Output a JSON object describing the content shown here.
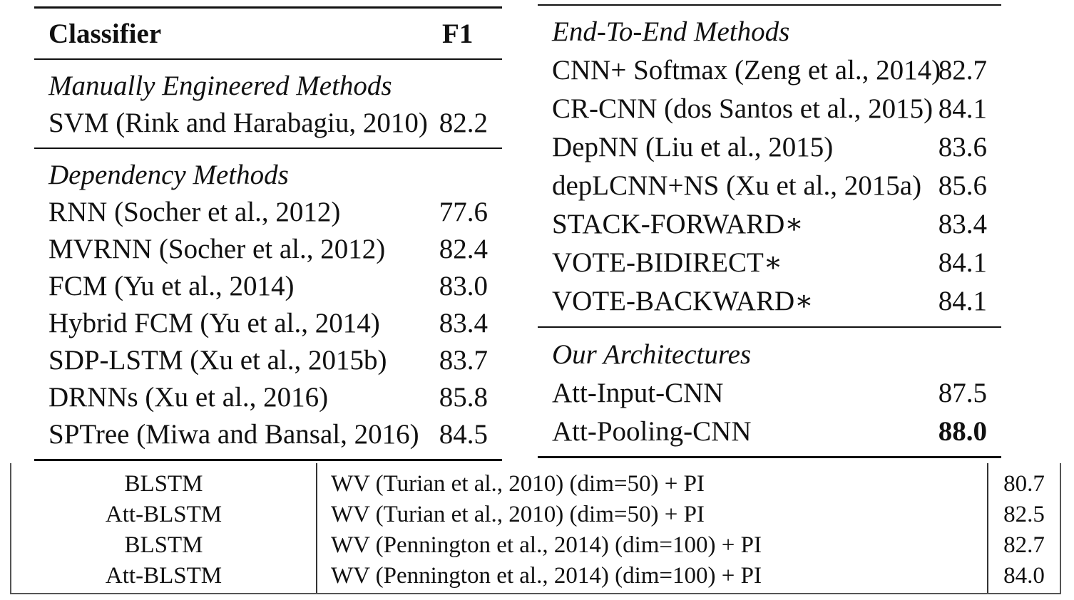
{
  "left_table": {
    "header": {
      "col1": "Classifier",
      "col2": "F1"
    },
    "sections": [
      {
        "title": "Manually Engineered Methods",
        "rows": [
          {
            "name": "SVM (Rink and Harabagiu, 2010)",
            "f1": "82.2"
          }
        ]
      },
      {
        "title": "Dependency Methods",
        "rows": [
          {
            "name": "RNN (Socher et al., 2012)",
            "f1": "77.6"
          },
          {
            "name": "MVRNN (Socher et al., 2012)",
            "f1": "82.4"
          },
          {
            "name": "FCM (Yu et al., 2014)",
            "f1": "83.0"
          },
          {
            "name": "Hybrid FCM (Yu et al., 2014)",
            "f1": "83.4"
          },
          {
            "name": "SDP-LSTM (Xu et al., 2015b)",
            "f1": "83.7"
          },
          {
            "name": "DRNNs (Xu et al., 2016)",
            "f1": "85.8"
          },
          {
            "name": "SPTree (Miwa and Bansal, 2016)",
            "f1": "84.5"
          }
        ]
      }
    ]
  },
  "right_table": {
    "sections": [
      {
        "title": "End-To-End Methods",
        "rows": [
          {
            "name": "CNN+ Softmax (Zeng et al., 2014)",
            "f1": "82.7"
          },
          {
            "name": "CR-CNN (dos Santos et al., 2015)",
            "f1": "84.1"
          },
          {
            "name": "DepNN (Liu et al., 2015)",
            "f1": "83.6"
          },
          {
            "name": "depLCNN+NS (Xu et al., 2015a)",
            "f1": "85.6"
          },
          {
            "name": "STACK-FORWARD∗",
            "f1": "83.4"
          },
          {
            "name": "VOTE-BIDIRECT∗",
            "f1": "84.1"
          },
          {
            "name": "VOTE-BACKWARD∗",
            "f1": "84.1"
          }
        ]
      },
      {
        "title": "Our Architectures",
        "rows": [
          {
            "name": "Att-Input-CNN",
            "f1": "87.5"
          },
          {
            "name": "Att-Pooling-CNN",
            "f1": "88.0"
          }
        ]
      }
    ]
  },
  "bottom_table": {
    "rows": [
      {
        "model": "BLSTM",
        "features": "WV (Turian et al., 2010) (dim=50) + PI",
        "f1": "80.7"
      },
      {
        "model": "Att-BLSTM",
        "features": "WV (Turian et al., 2010) (dim=50) + PI",
        "f1": "82.5"
      },
      {
        "model": "BLSTM",
        "features": "WV (Pennington et al., 2014) (dim=100) + PI",
        "f1": "82.7"
      },
      {
        "model": "Att-BLSTM",
        "features": "WV (Pennington et al., 2014) (dim=100) + PI",
        "f1": "84.0"
      }
    ]
  }
}
